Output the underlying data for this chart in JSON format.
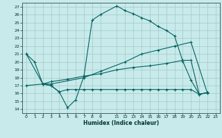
{
  "xlabel": "Humidex (Indice chaleur)",
  "bg_color": "#c8eaea",
  "grid_color": "#a0c8c8",
  "line_color": "#006060",
  "xlim": [
    -0.5,
    23.5
  ],
  "ylim": [
    13.5,
    27.5
  ],
  "xticks": [
    0,
    1,
    2,
    3,
    4,
    5,
    6,
    7,
    8,
    9,
    11,
    12,
    13,
    14,
    15,
    16,
    17,
    18,
    19,
    20,
    21,
    22,
    23
  ],
  "yticks": [
    14,
    15,
    16,
    17,
    18,
    19,
    20,
    21,
    22,
    23,
    24,
    25,
    26,
    27
  ],
  "line1_x": [
    0,
    1,
    2,
    3,
    4,
    5,
    6,
    7,
    8,
    9,
    11,
    12,
    13,
    14,
    15,
    16,
    17,
    18,
    19,
    20,
    21,
    22
  ],
  "line1_y": [
    21,
    20,
    17.2,
    17.0,
    16.2,
    14.2,
    15.2,
    18.2,
    25.3,
    26.0,
    27.1,
    26.5,
    26.1,
    25.6,
    25.2,
    24.5,
    24.0,
    23.3,
    20.1,
    17.7,
    15.9,
    16.1
  ],
  "line2_x": [
    0,
    2,
    3,
    7,
    9,
    12,
    14,
    16,
    18,
    20,
    22
  ],
  "line2_y": [
    21.0,
    17.2,
    17.2,
    18.0,
    18.8,
    20.0,
    21.0,
    21.5,
    22.0,
    22.5,
    16.0
  ],
  "line3_x": [
    2,
    3,
    4,
    5,
    6,
    7,
    8,
    9,
    11,
    12,
    13,
    14,
    15,
    16,
    17,
    18,
    19,
    20,
    21,
    22
  ],
  "line3_y": [
    17.2,
    17.0,
    16.2,
    16.5,
    16.5,
    16.5,
    16.5,
    16.5,
    16.5,
    16.5,
    16.5,
    16.5,
    16.5,
    16.5,
    16.5,
    16.5,
    16.5,
    16.5,
    15.9,
    16.1
  ],
  "line4_x": [
    0,
    2,
    3,
    5,
    7,
    9,
    11,
    13,
    15,
    17,
    19,
    20,
    21,
    22
  ],
  "line4_y": [
    17.0,
    17.2,
    17.5,
    17.8,
    18.2,
    18.5,
    19.0,
    19.3,
    19.5,
    19.8,
    20.2,
    20.2,
    15.9,
    16.1
  ]
}
